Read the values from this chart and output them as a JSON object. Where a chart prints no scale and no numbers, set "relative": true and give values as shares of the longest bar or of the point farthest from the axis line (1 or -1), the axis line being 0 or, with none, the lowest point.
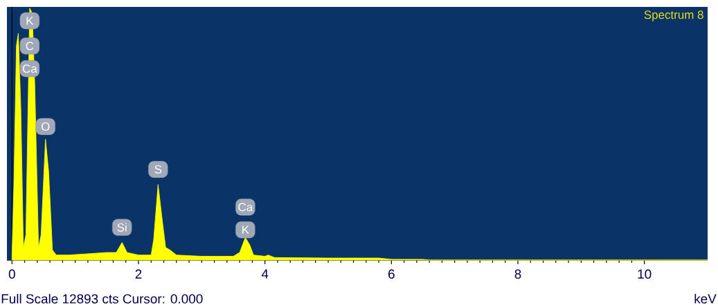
{
  "chart_data": {
    "type": "area",
    "title": "Spectrum 8",
    "xlabel": "keV",
    "relative": true,
    "xlim": [
      -0.08,
      11.0
    ],
    "xticks": [
      0,
      2,
      4,
      6,
      8,
      10
    ],
    "series": [
      {
        "color": "#ffff00",
        "x": [
          0.0,
          0.03,
          0.07,
          0.1,
          0.14,
          0.18,
          0.22,
          0.28,
          0.32,
          0.36,
          0.42,
          0.46,
          0.53,
          0.58,
          0.64,
          0.7,
          0.9,
          1.2,
          1.5,
          1.65,
          1.74,
          1.82,
          2.0,
          2.2,
          2.24,
          2.31,
          2.38,
          2.43,
          2.5,
          2.6,
          3.0,
          3.5,
          3.6,
          3.69,
          3.76,
          3.82,
          4.0,
          4.05,
          4.15,
          5.0,
          5.8,
          6.0,
          6.5,
          6.6,
          11.0
        ],
        "values": [
          0.02,
          0.3,
          0.85,
          0.9,
          0.6,
          0.05,
          0.1,
          1.0,
          0.98,
          0.7,
          0.05,
          0.1,
          0.48,
          0.35,
          0.04,
          0.02,
          0.02,
          0.025,
          0.03,
          0.03,
          0.07,
          0.03,
          0.02,
          0.02,
          0.08,
          0.3,
          0.15,
          0.05,
          0.04,
          0.02,
          0.015,
          0.015,
          0.03,
          0.09,
          0.06,
          0.02,
          0.015,
          0.02,
          0.01,
          0.008,
          0.008,
          0.003,
          0.003,
          0.0,
          0.0
        ]
      }
    ],
    "annotations": [
      {
        "text": "K",
        "x": 0.28,
        "y": 0.95
      },
      {
        "text": "C",
        "x": 0.28,
        "y": 0.85
      },
      {
        "text": "Ca",
        "x": 0.28,
        "y": 0.76
      },
      {
        "text": "O",
        "x": 0.53,
        "y": 0.53
      },
      {
        "text": "Si",
        "x": 1.74,
        "y": 0.13
      },
      {
        "text": "S",
        "x": 2.31,
        "y": 0.36
      },
      {
        "text": "Ca",
        "x": 3.69,
        "y": 0.21
      },
      {
        "text": "K",
        "x": 3.69,
        "y": 0.12
      },
      "Full Scale 12893 cts Cursor: 0.000"
    ]
  }
}
